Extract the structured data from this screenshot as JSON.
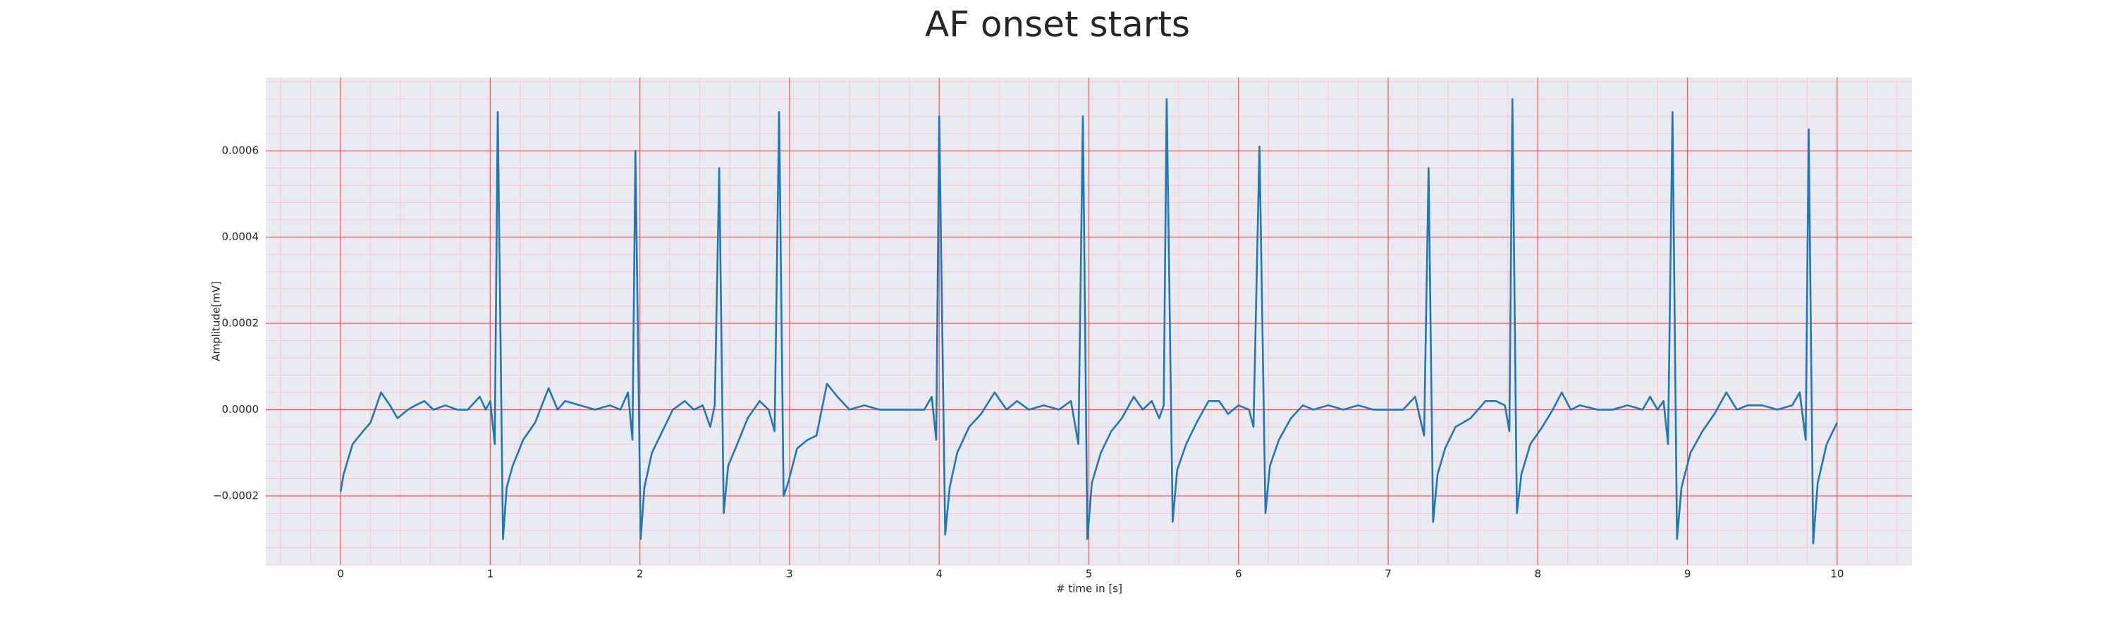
{
  "chart_data": {
    "type": "line",
    "title": "AF onset starts",
    "xlabel": "# time in [s]",
    "ylabel": "Amplitude[mV]",
    "color": "#1f77b4",
    "grid": true,
    "minor_grid": true,
    "minor_divisions": 5,
    "xlim": [
      -0.5,
      10.5
    ],
    "ylim": [
      -0.00036,
      0.00077
    ],
    "xticks": [
      0,
      1,
      2,
      3,
      4,
      5,
      6,
      7,
      8,
      9,
      10
    ],
    "yticks": [
      {
        "value": -0.0002,
        "label": "−0.0002"
      },
      {
        "value": 0,
        "label": "0.0000"
      },
      0.0002,
      0.0004,
      0.0006
    ],
    "x": [
      0,
      0.02,
      0.08,
      0.15,
      0.2,
      0.27,
      0.33,
      0.38,
      0.45,
      0.5,
      0.56,
      0.62,
      0.7,
      0.78,
      0.85,
      0.93,
      0.97,
      1.0,
      1.03,
      1.05,
      1.085,
      1.11,
      1.15,
      1.22,
      1.3,
      1.39,
      1.45,
      1.5,
      1.6,
      1.7,
      1.8,
      1.87,
      1.92,
      1.95,
      1.97,
      2.005,
      2.03,
      2.08,
      2.15,
      2.22,
      2.3,
      2.36,
      2.42,
      2.47,
      2.5,
      2.53,
      2.56,
      2.59,
      2.65,
      2.72,
      2.8,
      2.86,
      2.9,
      2.93,
      2.96,
      2.99,
      3.05,
      3.12,
      3.18,
      3.25,
      3.32,
      3.4,
      3.5,
      3.6,
      3.7,
      3.8,
      3.9,
      3.95,
      3.98,
      4.0,
      4.04,
      4.07,
      4.12,
      4.2,
      4.28,
      4.37,
      4.45,
      4.52,
      4.6,
      4.7,
      4.8,
      4.88,
      4.93,
      4.96,
      4.99,
      5.02,
      5.08,
      5.15,
      5.22,
      5.3,
      5.36,
      5.42,
      5.47,
      5.5,
      5.52,
      5.56,
      5.59,
      5.65,
      5.72,
      5.8,
      5.87,
      5.93,
      6.0,
      6.07,
      6.1,
      6.14,
      6.18,
      6.21,
      6.27,
      6.35,
      6.43,
      6.5,
      6.6,
      6.7,
      6.8,
      6.9,
      7.0,
      7.1,
      7.18,
      7.24,
      7.27,
      7.3,
      7.33,
      7.38,
      7.45,
      7.55,
      7.65,
      7.72,
      7.78,
      7.81,
      7.83,
      7.86,
      7.89,
      7.95,
      8.03,
      8.1,
      8.16,
      8.22,
      8.28,
      8.4,
      8.5,
      8.6,
      8.7,
      8.75,
      8.8,
      8.84,
      8.87,
      8.9,
      8.93,
      8.96,
      9.02,
      9.1,
      9.18,
      9.26,
      9.33,
      9.4,
      9.5,
      9.6,
      9.7,
      9.75,
      9.79,
      9.81,
      9.84,
      9.87,
      9.93,
      10.0
    ],
    "values": [
      -0.00019,
      -0.00015,
      -8e-05,
      -5e-05,
      -3e-05,
      4e-05,
      1e-05,
      -2e-05,
      0,
      1e-05,
      2e-05,
      0,
      1e-05,
      0,
      0,
      3e-05,
      0,
      2e-05,
      -8e-05,
      0.00069,
      -0.0003,
      -0.00018,
      -0.00013,
      -7e-05,
      -3e-05,
      5e-05,
      0,
      2e-05,
      1e-05,
      0,
      1e-05,
      0,
      4e-05,
      -7e-05,
      0.0006,
      -0.0003,
      -0.00018,
      -0.0001,
      -5e-05,
      0,
      2e-05,
      0,
      1e-05,
      -4e-05,
      1e-05,
      0.00056,
      -0.00024,
      -0.00013,
      -8e-05,
      -2e-05,
      2e-05,
      0,
      -5e-05,
      0.00069,
      -0.0002,
      -0.00017,
      -9e-05,
      -7e-05,
      -6e-05,
      6e-05,
      3e-05,
      0,
      1e-05,
      0,
      0,
      0,
      0,
      3e-05,
      -7e-05,
      0.00068,
      -0.00029,
      -0.00018,
      -0.0001,
      -4e-05,
      -1e-05,
      4e-05,
      0,
      2e-05,
      0,
      1e-05,
      0,
      2e-05,
      -8e-05,
      0.00068,
      -0.0003,
      -0.00017,
      -0.0001,
      -5e-05,
      -2e-05,
      3e-05,
      0,
      2e-05,
      -2e-05,
      1e-05,
      0.00072,
      -0.00026,
      -0.00014,
      -8e-05,
      -3e-05,
      2e-05,
      2e-05,
      -1e-05,
      1e-05,
      0,
      -4e-05,
      0.00061,
      -0.00024,
      -0.00013,
      -7e-05,
      -2e-05,
      1e-05,
      0,
      1e-05,
      0,
      1e-05,
      0,
      0,
      0,
      3e-05,
      -6e-05,
      0.00056,
      -0.00026,
      -0.00015,
      -9e-05,
      -4e-05,
      -2e-05,
      2e-05,
      2e-05,
      1e-05,
      -5e-05,
      0.00072,
      -0.00024,
      -0.00015,
      -8e-05,
      -4e-05,
      0,
      4e-05,
      0,
      1e-05,
      0,
      0,
      1e-05,
      0,
      3e-05,
      0,
      2e-05,
      -8e-05,
      0.00069,
      -0.0003,
      -0.00018,
      -0.0001,
      -5e-05,
      -1e-05,
      4e-05,
      0,
      1e-05,
      1e-05,
      0,
      1e-05,
      4e-05,
      -7e-05,
      0.00065,
      -0.00031,
      -0.00017,
      -8e-05,
      -3e-05
    ]
  }
}
